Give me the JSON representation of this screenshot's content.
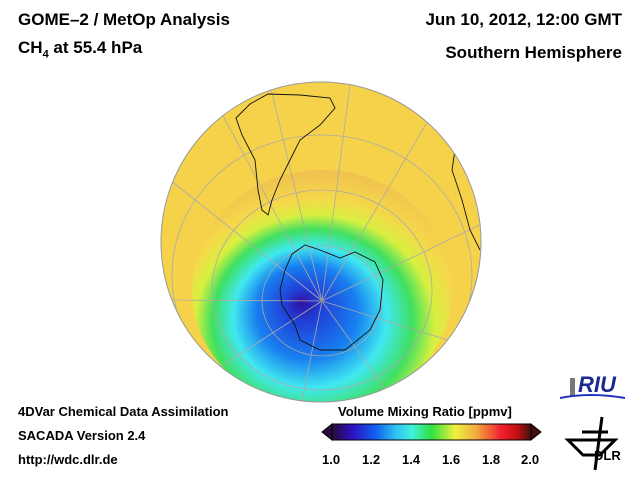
{
  "header": {
    "title": "GOME–2 / MetOp Analysis",
    "species_main": "CH",
    "species_sub": "4",
    "species_rest": " at 55.4 hPa",
    "datetime": "Jun 10, 2012, 12:00 GMT",
    "region": "Southern Hemisphere"
  },
  "footer": {
    "line1": "4DVar Chemical Data Assimilation",
    "line2": "SACADA Version 2.4",
    "line3": "http://wdc.dlr.de"
  },
  "colorbar": {
    "title": "Volume Mixing Ratio [ppmv]",
    "ticks": [
      "1.0",
      "1.2",
      "1.4",
      "1.6",
      "1.8",
      "2.0"
    ],
    "range": [
      1.0,
      2.0
    ],
    "colors": [
      "#2a0a3a",
      "#3010c0",
      "#1060f0",
      "#30c0f0",
      "#40f0e0",
      "#30e040",
      "#f0f040",
      "#f0b040",
      "#f02030",
      "#c01010",
      "#401010"
    ]
  },
  "logos": {
    "riu": "RIU",
    "dlr": "DLR"
  }
}
